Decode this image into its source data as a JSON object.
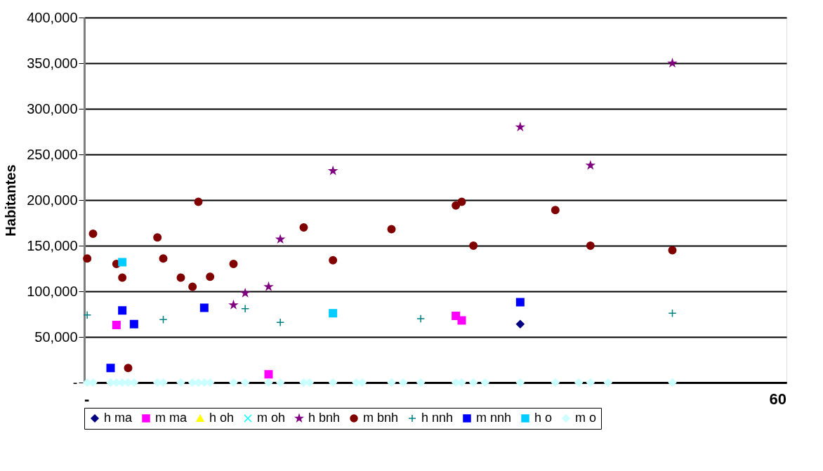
{
  "chart_data": {
    "type": "scatter",
    "ylabel": "Habitantes",
    "categories": [
      null,
      null,
      null,
      null,
      null,
      null,
      null,
      null,
      null,
      null,
      null,
      null,
      null,
      null,
      null,
      null,
      null,
      null,
      null,
      null,
      null,
      null,
      null,
      null,
      null,
      null,
      null,
      null,
      null,
      null,
      null,
      null,
      null,
      null,
      null,
      null,
      null,
      null,
      null,
      null,
      null,
      null,
      null,
      null,
      null,
      null,
      null,
      null,
      null,
      null,
      null,
      null,
      null,
      null,
      null,
      null,
      null,
      null,
      null,
      null,
      null,
      null,
      null,
      null,
      null,
      null,
      null,
      null,
      null,
      null,
      null,
      null,
      null,
      null,
      null,
      null,
      null,
      null,
      null,
      null,
      null,
      null,
      null,
      null,
      null,
      null,
      null,
      null,
      null,
      null,
      null,
      null,
      null,
      null,
      null,
      null,
      null,
      null,
      null,
      null,
      null,
      null,
      null,
      null,
      null,
      null,
      null,
      null,
      null,
      null,
      null,
      null,
      null,
      null,
      null,
      null,
      null,
      null,
      null,
      null
    ],
    "annotations": [
      "-",
      "60"
    ],
    "ylim": [
      0,
      400000
    ],
    "yticks": [
      {
        "value": 0,
        "label": "-"
      },
      {
        "value": 50000,
        "label": "50,000"
      },
      {
        "value": 100000,
        "label": "100,000"
      },
      {
        "value": 150000,
        "label": "150,000"
      },
      {
        "value": 200000,
        "label": "200,000"
      },
      {
        "value": 250000,
        "label": "250,000"
      },
      {
        "value": 300000,
        "label": "300,000"
      },
      {
        "value": 350000,
        "label": "350,000"
      },
      {
        "value": 400000,
        "label": "400,000"
      }
    ],
    "grid": "y",
    "legend": "bottom",
    "series": [
      {
        "name": "h ma",
        "color": "#000080",
        "marker": "diamond",
        "values": [
          null,
          null,
          null,
          null,
          null,
          null,
          null,
          null,
          null,
          null,
          null,
          null,
          null,
          null,
          null,
          null,
          null,
          null,
          null,
          null,
          null,
          null,
          null,
          null,
          null,
          null,
          null,
          null,
          null,
          null,
          null,
          null,
          null,
          null,
          null,
          null,
          null,
          null,
          null,
          null,
          null,
          null,
          null,
          null,
          null,
          null,
          null,
          null,
          null,
          null,
          null,
          null,
          null,
          null,
          null,
          null,
          null,
          null,
          null,
          null,
          null,
          null,
          null,
          null,
          null,
          null,
          null,
          null,
          null,
          null,
          null,
          null,
          null,
          null,
          64000,
          null,
          null,
          null,
          null,
          null,
          null,
          null,
          null,
          null,
          null,
          null,
          null,
          null,
          null,
          null,
          null,
          null,
          null,
          null,
          null,
          null,
          null,
          null,
          null,
          null,
          null,
          null,
          null,
          null,
          null,
          null,
          null,
          null,
          null,
          null,
          null,
          null,
          null,
          null,
          null,
          null,
          null,
          null,
          null,
          null
        ]
      },
      {
        "name": "m ma",
        "color": "#ff00ff",
        "marker": "square",
        "values": [
          null,
          null,
          null,
          null,
          null,
          63000,
          null,
          null,
          null,
          null,
          null,
          null,
          null,
          null,
          null,
          null,
          null,
          null,
          null,
          null,
          null,
          null,
          null,
          null,
          null,
          null,
          null,
          null,
          null,
          null,
          null,
          9000,
          null,
          null,
          null,
          null,
          null,
          null,
          null,
          null,
          null,
          null,
          null,
          null,
          null,
          null,
          null,
          null,
          null,
          null,
          null,
          null,
          null,
          null,
          null,
          null,
          null,
          null,
          null,
          null,
          null,
          null,
          null,
          73000,
          68000,
          null,
          null,
          null,
          null,
          null,
          null,
          null,
          null,
          null,
          null,
          null,
          null,
          null,
          null,
          null,
          null,
          null,
          null,
          null,
          null,
          null,
          null,
          null,
          null,
          null,
          null,
          null,
          null,
          null,
          null,
          null,
          null,
          null,
          null,
          null,
          null,
          null,
          null,
          null,
          null,
          null,
          null,
          null,
          null,
          null,
          null,
          null,
          null,
          null,
          null,
          null,
          null,
          null,
          null,
          null
        ]
      },
      {
        "name": "h oh",
        "color": "#ffff00",
        "marker": "triangle",
        "values": [
          null,
          null,
          null,
          null,
          null,
          null,
          null,
          null,
          null,
          null,
          null,
          null,
          null,
          null,
          null,
          null,
          null,
          null,
          null,
          null,
          null,
          null,
          null,
          null,
          null,
          null,
          null,
          null,
          null,
          null,
          null,
          null,
          null,
          null,
          null,
          null,
          null,
          null,
          null,
          null,
          null,
          null,
          null,
          null,
          null,
          null,
          null,
          null,
          null,
          null,
          null,
          null,
          null,
          null,
          null,
          null,
          null,
          null,
          null,
          null,
          null,
          null,
          null,
          null,
          null,
          null,
          null,
          null,
          null,
          null,
          null,
          null,
          null,
          null,
          null,
          null,
          null,
          null,
          null,
          null,
          null,
          null,
          null,
          null,
          null,
          null,
          null,
          null,
          null,
          null,
          null,
          null,
          null,
          null,
          null,
          null,
          null,
          null,
          null,
          null,
          null,
          null,
          null,
          null,
          null,
          null,
          null,
          null,
          null,
          null,
          null,
          null,
          null,
          null,
          null,
          null,
          null,
          null,
          null,
          null
        ]
      },
      {
        "name": "m oh",
        "color": "#00ffff",
        "marker": "cross",
        "values": [
          null,
          null,
          null,
          null,
          null,
          null,
          null,
          null,
          null,
          null,
          null,
          null,
          null,
          null,
          null,
          null,
          null,
          null,
          null,
          null,
          null,
          null,
          null,
          null,
          null,
          null,
          null,
          null,
          null,
          null,
          null,
          null,
          null,
          null,
          null,
          null,
          null,
          null,
          null,
          null,
          null,
          null,
          null,
          null,
          null,
          null,
          null,
          null,
          null,
          null,
          null,
          null,
          null,
          null,
          null,
          null,
          null,
          null,
          null,
          null,
          null,
          null,
          null,
          null,
          null,
          null,
          null,
          null,
          null,
          null,
          null,
          null,
          null,
          null,
          null,
          null,
          null,
          null,
          null,
          null,
          null,
          null,
          null,
          null,
          null,
          null,
          null,
          null,
          null,
          null,
          null,
          null,
          null,
          null,
          null,
          null,
          null,
          null,
          null,
          null,
          null,
          null,
          null,
          null,
          null,
          null,
          null,
          null,
          null,
          null,
          null,
          null,
          null,
          null,
          null,
          null,
          null,
          null,
          null,
          null
        ]
      },
      {
        "name": "h bnh",
        "color": "#800080",
        "marker": "star",
        "values": [
          null,
          null,
          null,
          null,
          null,
          null,
          null,
          null,
          null,
          null,
          null,
          null,
          null,
          null,
          null,
          null,
          null,
          null,
          null,
          null,
          null,
          null,
          null,
          null,
          null,
          85000,
          null,
          98000,
          null,
          null,
          null,
          105000,
          null,
          157000,
          null,
          null,
          null,
          null,
          null,
          null,
          null,
          null,
          232000,
          null,
          null,
          null,
          null,
          null,
          null,
          null,
          null,
          null,
          null,
          null,
          null,
          null,
          null,
          null,
          null,
          null,
          null,
          null,
          null,
          null,
          null,
          null,
          null,
          null,
          null,
          null,
          null,
          null,
          null,
          null,
          280000,
          null,
          null,
          null,
          null,
          null,
          null,
          null,
          null,
          null,
          null,
          null,
          238000,
          null,
          null,
          null,
          null,
          null,
          null,
          null,
          null,
          null,
          null,
          null,
          null,
          null,
          350000,
          null,
          null,
          null,
          null,
          null,
          null,
          null,
          null,
          null,
          null,
          null,
          null,
          null,
          null,
          null,
          null,
          null,
          null,
          null
        ]
      },
      {
        "name": "m bnh",
        "color": "#800000",
        "marker": "circle",
        "values": [
          136000,
          163000,
          null,
          null,
          null,
          130000,
          115000,
          16000,
          null,
          null,
          null,
          null,
          159000,
          136000,
          null,
          null,
          115000,
          null,
          105000,
          198000,
          null,
          116000,
          null,
          null,
          null,
          130000,
          null,
          null,
          null,
          null,
          null,
          null,
          null,
          null,
          null,
          null,
          null,
          170000,
          null,
          null,
          null,
          null,
          134000,
          null,
          null,
          null,
          null,
          null,
          null,
          null,
          null,
          null,
          168000,
          null,
          null,
          null,
          null,
          null,
          null,
          null,
          null,
          null,
          null,
          194000,
          198000,
          null,
          150000,
          null,
          null,
          null,
          null,
          null,
          null,
          null,
          null,
          null,
          null,
          null,
          null,
          null,
          189000,
          null,
          null,
          null,
          null,
          null,
          150000,
          null,
          null,
          null,
          null,
          null,
          null,
          null,
          null,
          null,
          null,
          null,
          null,
          null,
          145000,
          null,
          null,
          null,
          null,
          null,
          null,
          null,
          null,
          null,
          null,
          null,
          null,
          null,
          null,
          null,
          null,
          null,
          null,
          null
        ]
      },
      {
        "name": "h nnh",
        "color": "#008080",
        "marker": "plus",
        "values": [
          74000,
          null,
          null,
          null,
          null,
          null,
          null,
          null,
          null,
          null,
          null,
          null,
          null,
          69000,
          null,
          null,
          null,
          null,
          null,
          null,
          null,
          null,
          null,
          null,
          null,
          null,
          null,
          81000,
          null,
          null,
          null,
          null,
          null,
          66000,
          null,
          null,
          null,
          null,
          null,
          null,
          null,
          null,
          null,
          null,
          null,
          null,
          null,
          null,
          null,
          null,
          null,
          null,
          null,
          null,
          null,
          null,
          null,
          70000,
          null,
          null,
          null,
          null,
          null,
          null,
          null,
          null,
          null,
          null,
          null,
          null,
          null,
          null,
          null,
          null,
          null,
          null,
          null,
          null,
          null,
          null,
          null,
          null,
          null,
          null,
          null,
          null,
          null,
          null,
          null,
          null,
          null,
          null,
          null,
          null,
          null,
          null,
          null,
          null,
          null,
          null,
          76000,
          null,
          null,
          null,
          null,
          null,
          null,
          null,
          null,
          null,
          null,
          null,
          null,
          null,
          null,
          null,
          null,
          null,
          null,
          null
        ]
      },
      {
        "name": "m nnh",
        "color": "#0000ff",
        "marker": "square",
        "values": [
          null,
          null,
          null,
          null,
          16000,
          null,
          79000,
          null,
          64000,
          null,
          null,
          null,
          null,
          null,
          null,
          null,
          null,
          null,
          null,
          null,
          82000,
          null,
          null,
          null,
          null,
          null,
          null,
          null,
          null,
          null,
          null,
          null,
          null,
          null,
          null,
          null,
          null,
          null,
          null,
          null,
          null,
          null,
          null,
          null,
          null,
          null,
          null,
          null,
          null,
          null,
          null,
          null,
          null,
          null,
          null,
          null,
          null,
          null,
          null,
          null,
          null,
          null,
          null,
          null,
          null,
          null,
          null,
          null,
          null,
          null,
          null,
          null,
          null,
          null,
          88000,
          null,
          null,
          null,
          null,
          null,
          null,
          null,
          null,
          null,
          null,
          null,
          null,
          null,
          null,
          null,
          null,
          null,
          null,
          null,
          null,
          null,
          null,
          null,
          null,
          null,
          null,
          null,
          null,
          null,
          null,
          null,
          null,
          null,
          null,
          null,
          null,
          null,
          null,
          null,
          null,
          null,
          null,
          null,
          null,
          null
        ]
      },
      {
        "name": "h o",
        "color": "#00ccff",
        "marker": "square",
        "values": [
          null,
          null,
          null,
          null,
          null,
          null,
          132000,
          null,
          null,
          null,
          null,
          null,
          null,
          null,
          null,
          null,
          null,
          null,
          null,
          null,
          null,
          null,
          null,
          null,
          null,
          null,
          null,
          null,
          null,
          null,
          null,
          null,
          null,
          null,
          null,
          null,
          null,
          null,
          null,
          null,
          null,
          null,
          76000,
          null,
          null,
          null,
          null,
          null,
          null,
          null,
          null,
          null,
          null,
          null,
          null,
          null,
          null,
          null,
          null,
          null,
          null,
          null,
          null,
          null,
          null,
          null,
          null,
          null,
          null,
          null,
          null,
          null,
          null,
          null,
          null,
          null,
          null,
          null,
          null,
          null,
          null,
          null,
          null,
          null,
          null,
          null,
          null,
          null,
          null,
          null,
          null,
          null,
          null,
          null,
          null,
          null,
          null,
          null,
          null,
          null,
          null,
          null,
          null,
          null,
          null,
          null,
          null,
          null,
          null,
          null,
          null,
          null,
          null,
          null,
          null,
          null,
          null,
          null,
          null,
          null
        ]
      },
      {
        "name": "m o",
        "color": "#ccffff",
        "marker": "diamond",
        "values": [
          0,
          0,
          null,
          null,
          0,
          0,
          0,
          0,
          0,
          null,
          null,
          null,
          0,
          0,
          null,
          null,
          0,
          null,
          0,
          0,
          0,
          0,
          null,
          null,
          null,
          0,
          null,
          0,
          null,
          null,
          null,
          0,
          null,
          0,
          null,
          null,
          null,
          0,
          0,
          null,
          null,
          null,
          0,
          null,
          null,
          null,
          0,
          0,
          null,
          null,
          null,
          null,
          0,
          null,
          0,
          null,
          null,
          0,
          null,
          null,
          null,
          null,
          null,
          0,
          0,
          null,
          0,
          null,
          0,
          null,
          null,
          null,
          null,
          null,
          0,
          null,
          null,
          null,
          null,
          null,
          0,
          null,
          null,
          null,
          0,
          null,
          0,
          null,
          null,
          0,
          null,
          null,
          null,
          null,
          null,
          null,
          null,
          null,
          null,
          null,
          0,
          null,
          null,
          null,
          null,
          null,
          null,
          null,
          null,
          null,
          null,
          null,
          null,
          null,
          null,
          null,
          null,
          null,
          null,
          null
        ]
      }
    ]
  }
}
